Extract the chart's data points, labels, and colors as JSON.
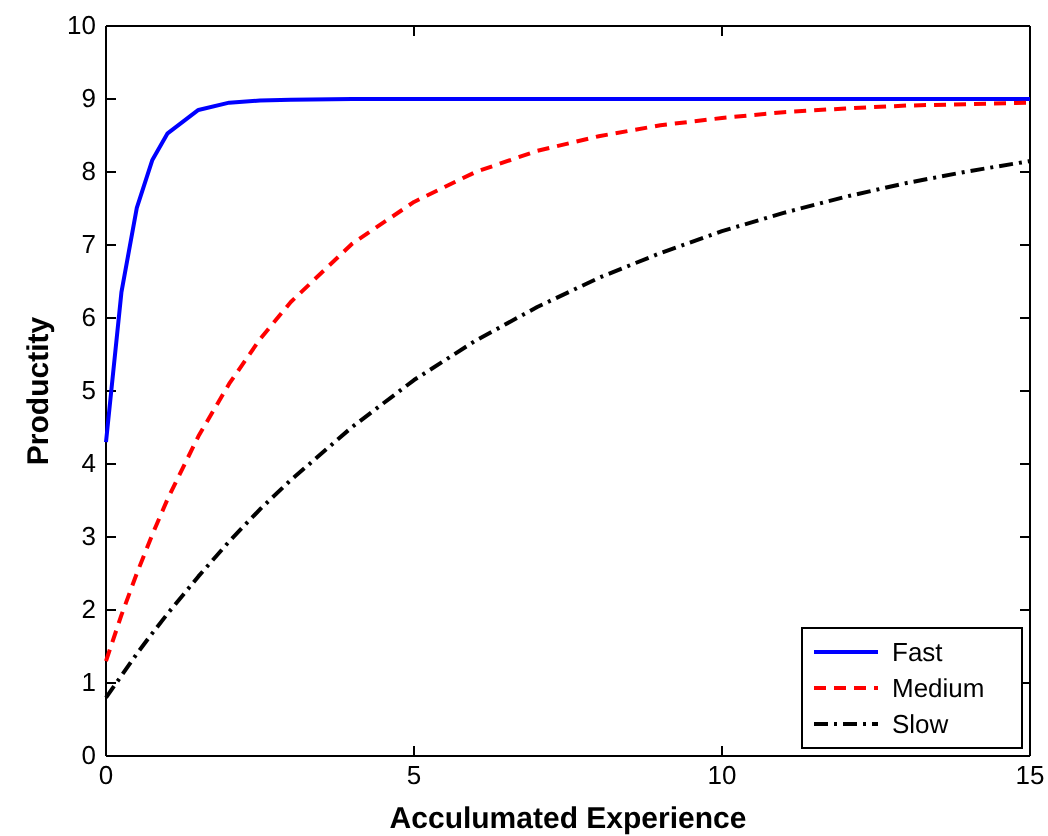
{
  "chart_data": {
    "type": "line",
    "xlabel": "Acculumated Experience",
    "ylabel": "Productity",
    "x": [
      0,
      0.25,
      0.5,
      0.75,
      1,
      1.5,
      2,
      2.5,
      3,
      4,
      5,
      6,
      7,
      8,
      9,
      10,
      11,
      12,
      13,
      14,
      15
    ],
    "series": [
      {
        "name": "Fast",
        "color": "#0000ff",
        "line_style": "solid",
        "values": [
          4.3,
          6.35,
          7.51,
          8.16,
          8.53,
          8.85,
          8.95,
          8.98,
          8.99,
          9.0,
          9.0,
          9.0,
          9.0,
          9.0,
          9.0,
          9.0,
          9.0,
          9.0,
          9.0,
          9.0,
          9.0
        ]
      },
      {
        "name": "Medium",
        "color": "#ff0000",
        "line_style": "dashed",
        "values": [
          1.3,
          1.93,
          2.5,
          3.03,
          3.52,
          4.38,
          5.1,
          5.71,
          6.22,
          7.02,
          7.59,
          8.0,
          8.29,
          8.49,
          8.64,
          8.74,
          8.82,
          8.87,
          8.91,
          8.93,
          8.95
        ]
      },
      {
        "name": "Slow",
        "color": "#000000",
        "line_style": "dashdot",
        "values": [
          0.8,
          1.1,
          1.4,
          1.68,
          1.95,
          2.46,
          2.94,
          3.38,
          3.78,
          4.51,
          5.15,
          5.69,
          6.15,
          6.55,
          6.89,
          7.19,
          7.44,
          7.66,
          7.85,
          8.01,
          8.15
        ]
      }
    ],
    "xlim": [
      0,
      15
    ],
    "xticks": [
      0,
      5,
      10,
      15
    ],
    "ylim": [
      0,
      10
    ],
    "yticks": [
      0,
      1,
      2,
      3,
      4,
      5,
      6,
      7,
      8,
      9,
      10
    ],
    "legend": "bottom right",
    "grid": false
  }
}
